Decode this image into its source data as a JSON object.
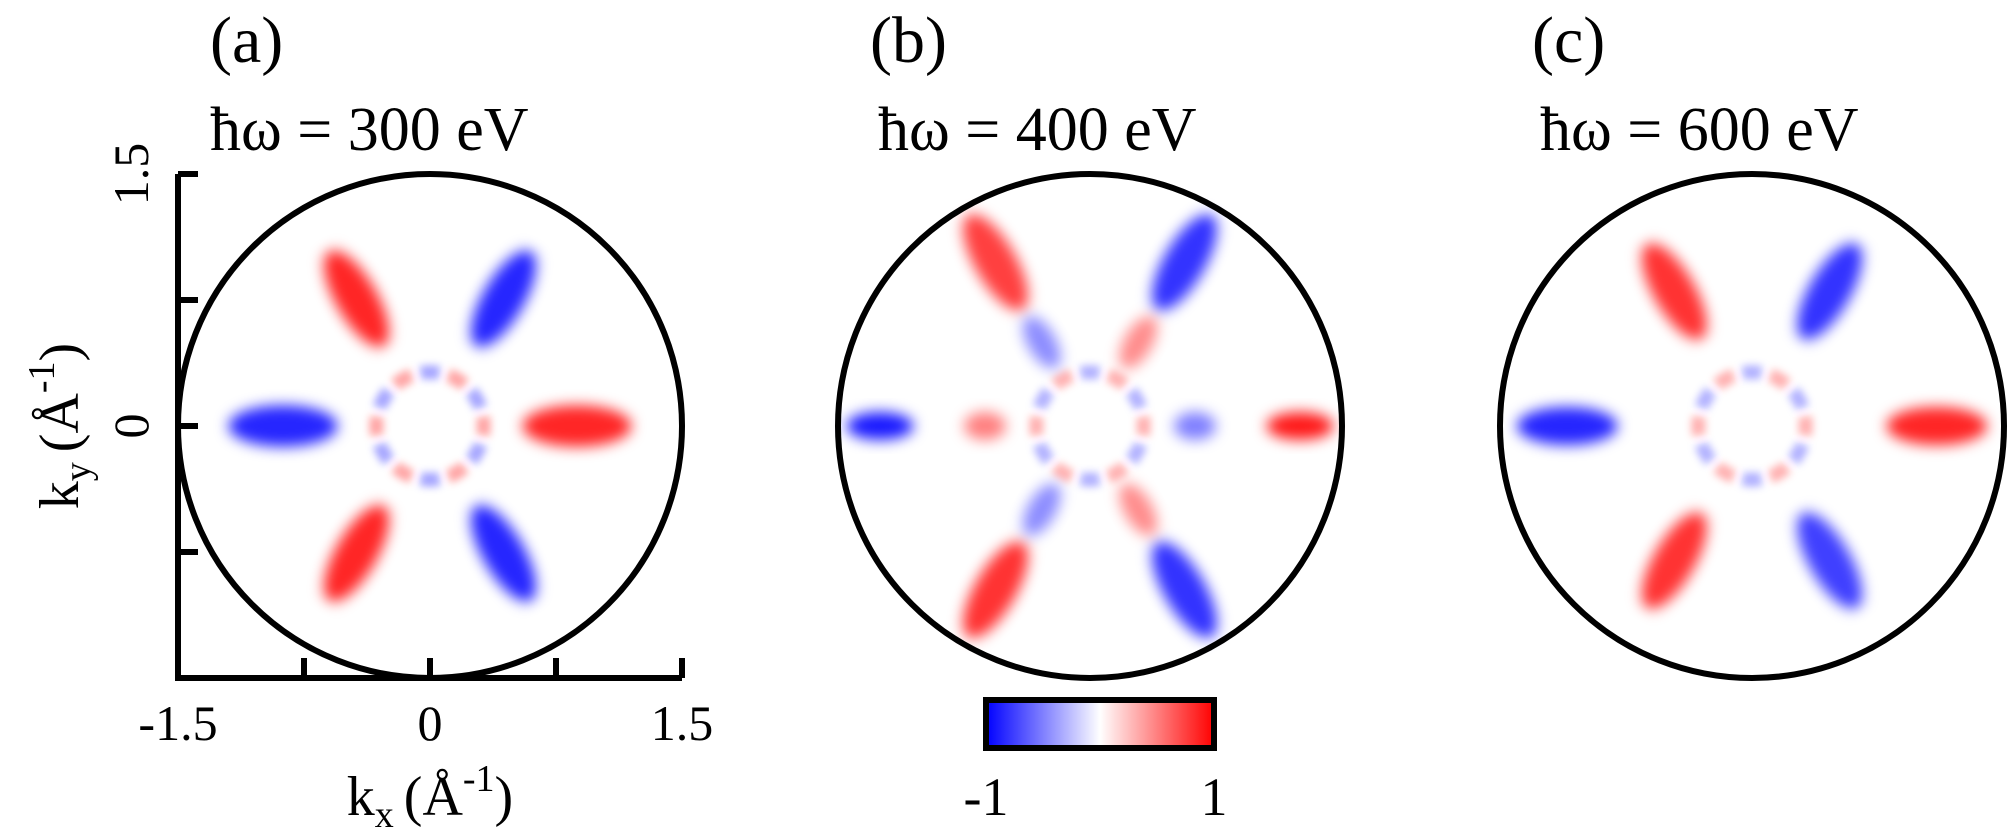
{
  "chart_data": {
    "type": "heatmap",
    "colormap": {
      "low_color": "#0000ff",
      "mid_color": "#ffffff",
      "high_color": "#ff0000",
      "min": -1,
      "max": 1,
      "tick_labels": [
        "-1",
        "1"
      ]
    },
    "axes": {
      "xlabel": {
        "base": "k",
        "sub": "x",
        "unit_open": "(Å",
        "sup": "-1",
        "unit_close": ")"
      },
      "ylabel": {
        "base": "k",
        "sub": "y",
        "unit_open": "(Å",
        "sup": "-1",
        "unit_close": ")"
      },
      "xlim": [
        -1.5,
        1.5
      ],
      "ylim": [
        -1.5,
        1.5
      ],
      "x_tick_labels": [
        "-1.5",
        "0",
        "1.5"
      ],
      "y_tick_labels": [
        "1.5",
        "0"
      ],
      "x_ticks": [
        -1.5,
        -0.75,
        0,
        0.75,
        1.5
      ],
      "y_ticks": [
        1.5,
        0.75,
        0,
        -0.75
      ]
    },
    "panels": [
      {
        "label": "(a)",
        "title": "ħω = 300 eV",
        "photon_energy_eV": 300,
        "lobes": [
          {
            "angle_deg": 0,
            "r_inner": 0.55,
            "r_outer": 1.2,
            "value": 0.85
          },
          {
            "angle_deg": 60,
            "r_inner": 0.55,
            "r_outer": 1.2,
            "value": -0.85
          },
          {
            "angle_deg": 120,
            "r_inner": 0.55,
            "r_outer": 1.2,
            "value": 0.85
          },
          {
            "angle_deg": 180,
            "r_inner": 0.55,
            "r_outer": 1.2,
            "value": -0.85
          },
          {
            "angle_deg": 240,
            "r_inner": 0.55,
            "r_outer": 1.2,
            "value": 0.85
          },
          {
            "angle_deg": 300,
            "r_inner": 0.55,
            "r_outer": 1.2,
            "value": -0.85
          }
        ],
        "inner_ring_value": 0.35
      },
      {
        "label": "(b)",
        "title": "ħω = 400 eV",
        "photon_energy_eV": 400,
        "lobes": [
          {
            "angle_deg": 0,
            "r_inner": 1.05,
            "r_outer": 1.45,
            "value": 0.9
          },
          {
            "angle_deg": 60,
            "r_inner": 0.8,
            "r_outer": 1.45,
            "value": -0.8
          },
          {
            "angle_deg": 120,
            "r_inner": 0.8,
            "r_outer": 1.45,
            "value": 0.75
          },
          {
            "angle_deg": 180,
            "r_inner": 1.05,
            "r_outer": 1.45,
            "value": -0.9
          },
          {
            "angle_deg": 240,
            "r_inner": 0.8,
            "r_outer": 1.45,
            "value": 0.8
          },
          {
            "angle_deg": 300,
            "r_inner": 0.8,
            "r_outer": 1.45,
            "value": -0.8
          },
          {
            "angle_deg": 0,
            "r_inner": 0.5,
            "r_outer": 0.75,
            "value": -0.5
          },
          {
            "angle_deg": 60,
            "r_inner": 0.4,
            "r_outer": 0.75,
            "value": 0.45
          },
          {
            "angle_deg": 120,
            "r_inner": 0.4,
            "r_outer": 0.75,
            "value": -0.45
          },
          {
            "angle_deg": 180,
            "r_inner": 0.5,
            "r_outer": 0.75,
            "value": 0.5
          },
          {
            "angle_deg": 240,
            "r_inner": 0.4,
            "r_outer": 0.75,
            "value": -0.45
          },
          {
            "angle_deg": 300,
            "r_inner": 0.4,
            "r_outer": 0.75,
            "value": 0.45
          }
        ],
        "inner_ring_value": 0.3
      },
      {
        "label": "(c)",
        "title": "ħω = 600 eV",
        "photon_energy_eV": 600,
        "lobes": [
          {
            "angle_deg": 0,
            "r_inner": 0.8,
            "r_outer": 1.4,
            "value": 0.85
          },
          {
            "angle_deg": 60,
            "r_inner": 0.6,
            "r_outer": 1.25,
            "value": -0.8
          },
          {
            "angle_deg": 120,
            "r_inner": 0.6,
            "r_outer": 1.25,
            "value": 0.8
          },
          {
            "angle_deg": 180,
            "r_inner": 0.8,
            "r_outer": 1.4,
            "value": -0.85
          },
          {
            "angle_deg": 240,
            "r_inner": 0.6,
            "r_outer": 1.25,
            "value": 0.8
          },
          {
            "angle_deg": 300,
            "r_inner": 0.6,
            "r_outer": 1.25,
            "value": -0.75
          }
        ],
        "inner_ring_value": 0.3
      }
    ]
  }
}
